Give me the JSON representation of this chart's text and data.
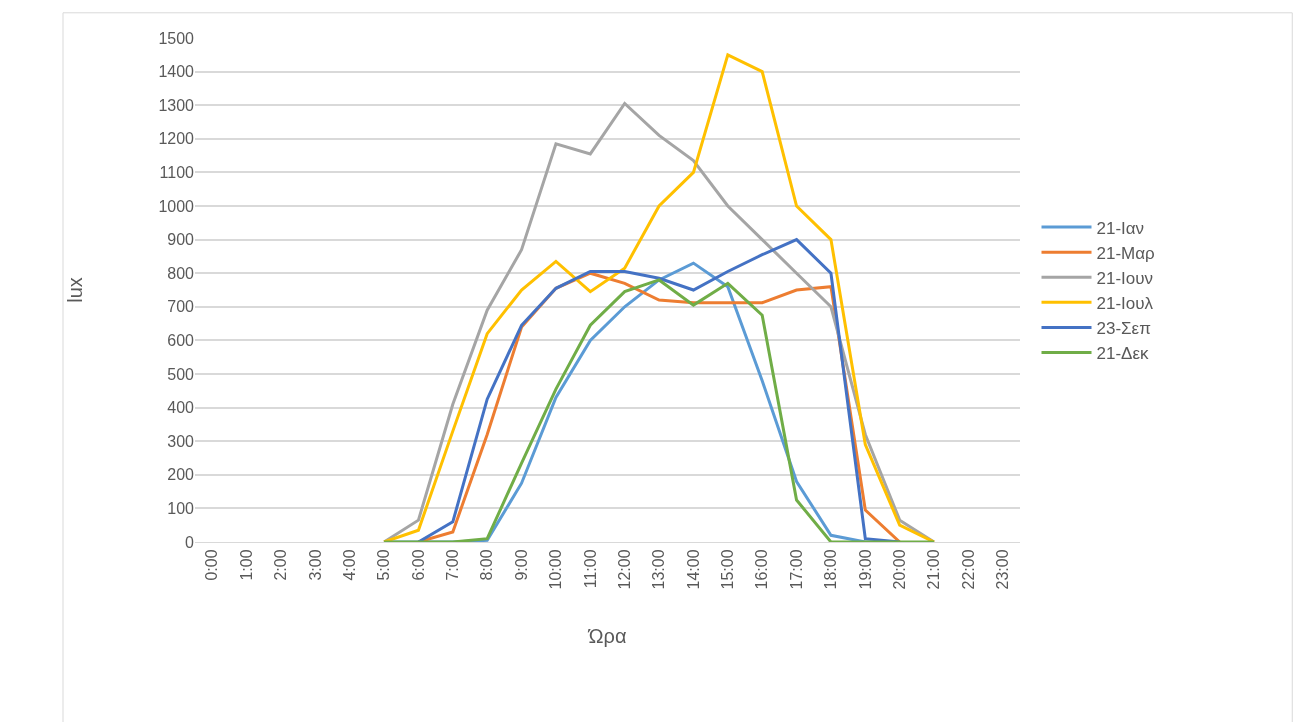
{
  "chart_data": {
    "type": "line",
    "xlabel": "Ώρα",
    "ylabel": "lux",
    "categories": [
      "0:00",
      "1:00",
      "2:00",
      "3:00",
      "4:00",
      "5:00",
      "6:00",
      "7:00",
      "8:00",
      "9:00",
      "10:00",
      "11:00",
      "12:00",
      "13:00",
      "14:00",
      "15:00",
      "16:00",
      "17:00",
      "18:00",
      "19:00",
      "20:00",
      "21:00",
      "22:00",
      "23:00"
    ],
    "series": [
      {
        "name": "21-Ιαν",
        "color": "#5b9bd5",
        "values": [
          null,
          null,
          null,
          null,
          null,
          0,
          0,
          0,
          5,
          175,
          430,
          600,
          700,
          780,
          830,
          760,
          480,
          180,
          20,
          0,
          0,
          null,
          null,
          null
        ]
      },
      {
        "name": "21-Μαρ",
        "color": "#ed7d31",
        "values": [
          null,
          null,
          null,
          null,
          null,
          null,
          0,
          30,
          320,
          640,
          755,
          800,
          770,
          720,
          712,
          712,
          712,
          750,
          760,
          95,
          0,
          null,
          null,
          null
        ]
      },
      {
        "name": "21-Ιουν",
        "color": "#a5a5a5",
        "values": [
          null,
          null,
          null,
          null,
          null,
          0,
          65,
          410,
          690,
          870,
          1185,
          1155,
          1305,
          1210,
          1135,
          1000,
          900,
          800,
          700,
          320,
          65,
          0,
          null,
          null
        ]
      },
      {
        "name": "21-Ιουλ",
        "color": "#ffc000",
        "values": [
          null,
          null,
          null,
          null,
          null,
          0,
          35,
          330,
          620,
          750,
          835,
          745,
          815,
          1000,
          1100,
          1450,
          1400,
          1000,
          900,
          290,
          50,
          0,
          null,
          null
        ]
      },
      {
        "name": "23-Σεπ",
        "color": "#4472c4",
        "values": [
          null,
          null,
          null,
          null,
          null,
          null,
          0,
          60,
          425,
          645,
          755,
          805,
          805,
          785,
          750,
          805,
          855,
          900,
          800,
          10,
          0,
          null,
          null,
          null
        ]
      },
      {
        "name": "21-Δεκ",
        "color": "#70ad47",
        "values": [
          null,
          null,
          null,
          null,
          null,
          0,
          0,
          0,
          10,
          235,
          455,
          645,
          745,
          780,
          705,
          770,
          675,
          125,
          0,
          0,
          0,
          0,
          null,
          null
        ]
      }
    ],
    "ylim": [
      0,
      1500
    ],
    "yticks": [
      0,
      100,
      200,
      300,
      400,
      500,
      600,
      700,
      800,
      900,
      1000,
      1100,
      1200,
      1300,
      1400,
      1500
    ],
    "grid": "y",
    "legend": "right",
    "marker": "none",
    "line_style": "solid"
  }
}
